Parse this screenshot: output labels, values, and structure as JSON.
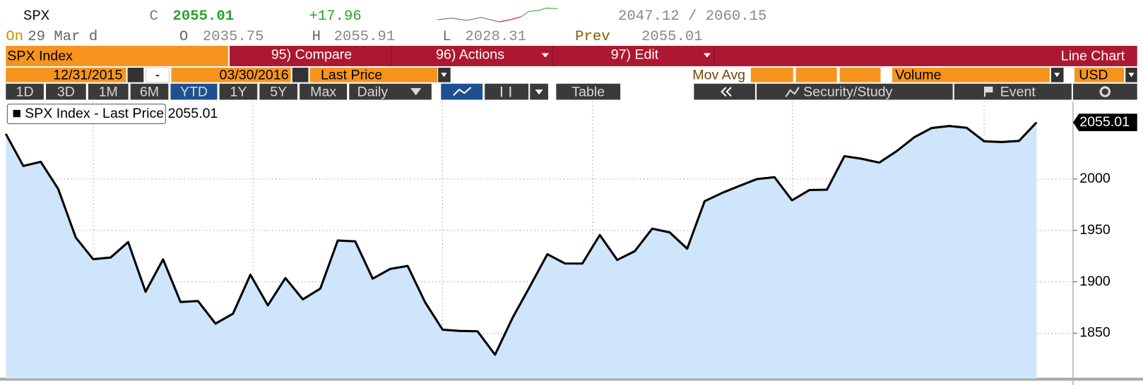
{
  "header": {
    "ticker": "SPX",
    "close_label": "C",
    "close": "2055.01",
    "change": "+17.96",
    "day_range": "2047.12 / 2060.15",
    "date_label": "On",
    "date": "29 Mar d",
    "open_label": "O",
    "open": "2035.75",
    "high_label": "H",
    "high": "2055.91",
    "low_label": "L",
    "low": "2028.31",
    "prev_label": "Prev",
    "prev": "2055.01"
  },
  "toolbar": {
    "security": "SPX Index",
    "compare": "95) Compare",
    "actions": "96) Actions",
    "edit": "97) Edit",
    "chart_type": "Line Chart"
  },
  "settings": {
    "start_date": "12/31/2015",
    "date_separator": "-",
    "end_date": "03/30/2016",
    "field": "Last Price",
    "study": "Mov Avg",
    "lower_study": "Volume",
    "currency": "USD"
  },
  "periods": [
    "1D",
    "3D",
    "1M",
    "6M",
    "YTD",
    "1Y",
    "5Y",
    "Max"
  ],
  "selected_period": "YTD",
  "buttons": {
    "frequency": "Daily",
    "table": "Table",
    "security_study": "Security/Study",
    "event": "Event"
  },
  "chart_data": {
    "type": "line",
    "legend": "SPX Index - Last Price 2055.01",
    "current_value_label": "2055.01",
    "color": "#000000",
    "fill": "#cfe5fb",
    "values": [
      2043.94,
      2012.66,
      2016.71,
      1990.26,
      1943.09,
      1922.03,
      1923.67,
      1938.68,
      1890.28,
      1921.84,
      1880.33,
      1881.33,
      1859.33,
      1868.99,
      1906.9,
      1877.08,
      1903.63,
      1882.95,
      1893.36,
      1940.24,
      1939.38,
      1903.03,
      1912.53,
      1915.45,
      1880.05,
      1853.44,
      1852.21,
      1851.86,
      1829.08,
      1864.78,
      1895.58,
      1926.82,
      1917.83,
      1917.78,
      1945.5,
      1921.27,
      1929.8,
      1951.7,
      1948.05,
      1932.23,
      1978.35,
      1986.45,
      1993.4,
      1999.99,
      2001.76,
      1979.26,
      1989.26,
      1989.57,
      2022.19,
      2019.64,
      2015.93,
      2027.22,
      2040.59,
      2049.58,
      2051.6,
      2049.8,
      2036.71,
      2035.94,
      2037.05,
      2055.01
    ],
    "ylim": [
      1806,
      2075
    ],
    "yticks": [
      1850,
      1900,
      1950,
      2000
    ],
    "grid": true
  }
}
